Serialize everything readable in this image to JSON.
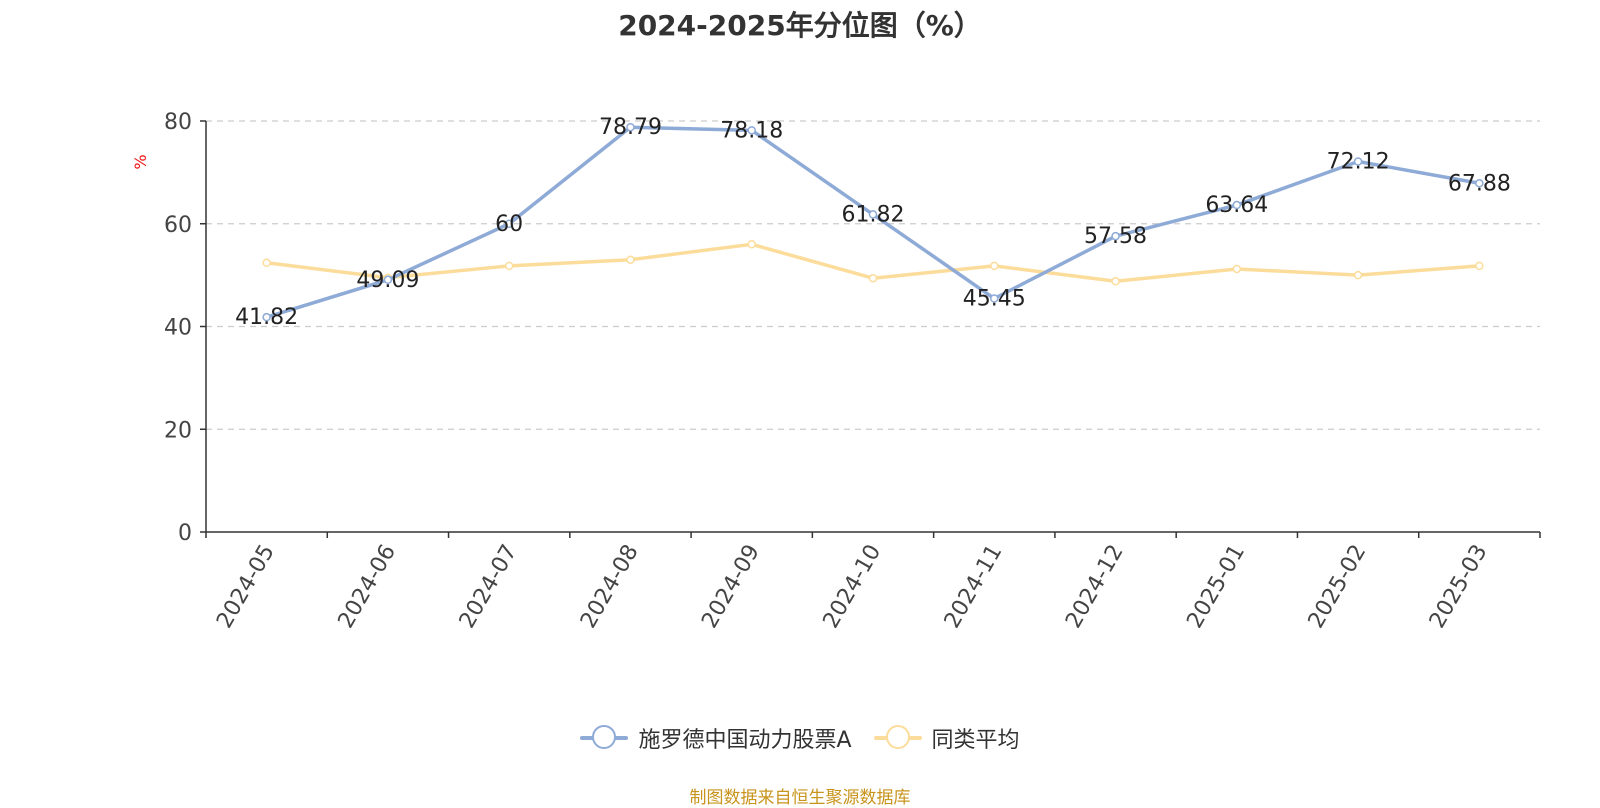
{
  "colors": {
    "series_a": "#8eaad6",
    "series_b": "#fcdc9a",
    "axis": "#333333",
    "grid": "#cccccc",
    "tick_text": "#444444",
    "y_unit": "#ee1111",
    "source": "#c8941c"
  },
  "chart_data": {
    "type": "line",
    "title": "2024-2025年分位图（%）",
    "ylabel": "%",
    "xlabel": "",
    "ylim": [
      0,
      80
    ],
    "yticks": [
      0,
      20,
      40,
      60,
      80
    ],
    "grid": true,
    "legend_position": "bottom",
    "categories": [
      "2024-05",
      "2024-06",
      "2024-07",
      "2024-08",
      "2024-09",
      "2024-10",
      "2024-11",
      "2024-12",
      "2025-01",
      "2025-02",
      "2025-03"
    ],
    "series": [
      {
        "name": "施罗德中国动力股票A",
        "values": [
          41.82,
          49.09,
          60,
          78.79,
          78.18,
          61.82,
          45.45,
          57.58,
          63.64,
          72.12,
          67.88
        ],
        "labels": [
          "41.82",
          "49.09",
          "60",
          "78.79",
          "78.18",
          "61.82",
          "45.45",
          "57.58",
          "63.64",
          "72.12",
          "67.88"
        ]
      },
      {
        "name": "同类平均",
        "values": [
          52.4,
          49.5,
          51.8,
          53.0,
          56.0,
          49.4,
          51.8,
          48.8,
          51.2,
          50.0,
          51.8
        ]
      }
    ]
  },
  "source_note": "制图数据来自恒生聚源数据库"
}
